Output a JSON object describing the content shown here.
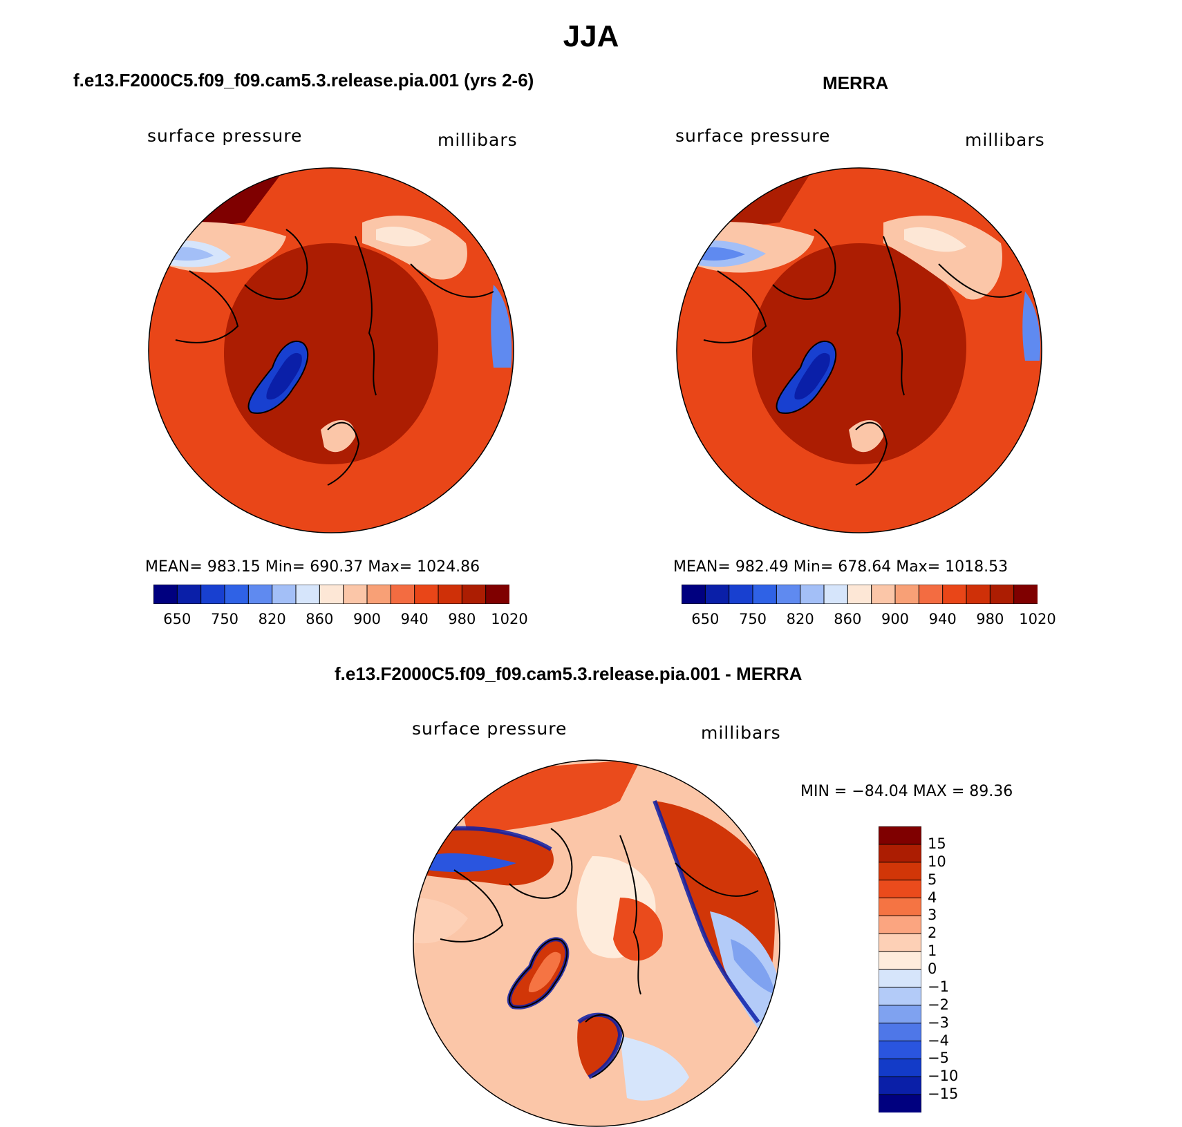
{
  "page_title": "JJA",
  "panels": [
    {
      "header": "f.e13.F2000C5.f09_f09.cam5.3.release.pia.001 (yrs 2-6)",
      "variable": "surface pressure",
      "units": "millibars",
      "stats": "MEAN= 983.15   Min= 690.37   Max= 1024.86"
    },
    {
      "header": "MERRA",
      "variable": "surface pressure",
      "units": "millibars",
      "stats": "MEAN= 982.49   Min= 678.64   Max= 1018.53"
    }
  ],
  "diff_panel": {
    "header": "f.e13.F2000C5.f09_f09.cam5.3.release.pia.001 - MERRA",
    "variable": "surface pressure",
    "units": "millibars",
    "stats": "MIN = −84.04  MAX =   89.36"
  },
  "colorbar_top": {
    "colors": [
      "#00007f",
      "#0a1fa8",
      "#1840d0",
      "#2f62e6",
      "#5f8af0",
      "#a3bff7",
      "#d6e5fb",
      "#fde7d6",
      "#fbc6a8",
      "#f8a076",
      "#f36c41",
      "#e94618",
      "#cf3008",
      "#ac1d02",
      "#7f0000"
    ],
    "tick_labels": [
      "650",
      "750",
      "820",
      "860",
      "900",
      "940",
      "980",
      "1020"
    ]
  },
  "colorbar_diff": {
    "colors": [
      "#7f0000",
      "#ac1d02",
      "#d13608",
      "#ea4b1c",
      "#f57443",
      "#fba580",
      "#fdd0b6",
      "#feecdc",
      "#d6e5fb",
      "#b3cbf8",
      "#7fa2f0",
      "#4e77e8",
      "#2a55df",
      "#133bc8",
      "#0a1fa8",
      "#00007f"
    ],
    "tick_labels": [
      "15",
      "10",
      "5",
      "4",
      "3",
      "2",
      "1",
      "0",
      "−1",
      "−2",
      "−3",
      "−4",
      "−5",
      "−10",
      "−15"
    ]
  }
}
